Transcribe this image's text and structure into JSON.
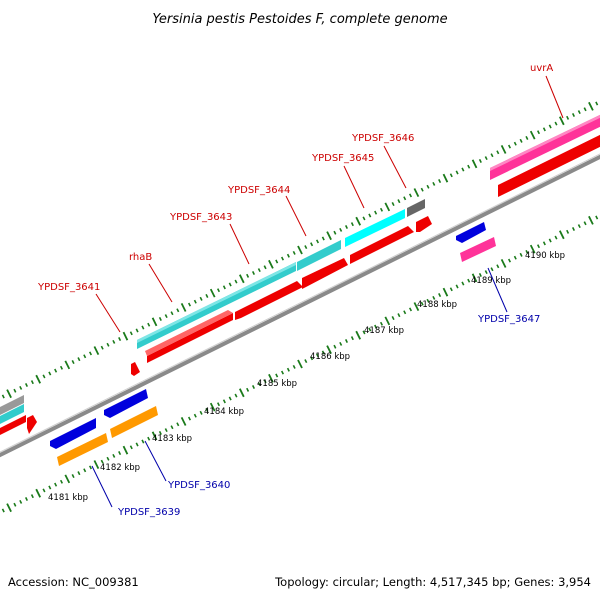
{
  "title": "Yersinia pestis Pestoides F, complete genome",
  "footer": {
    "accession": "Accession: NC_009381",
    "summary": "Topology: circular; Length: 4,517,345 bp; Genes: 3,954"
  },
  "colors": {
    "forward_label": "#cc0000",
    "reverse_label": "#0000aa",
    "backbone": "#8a8a8a",
    "tick": "#1a7a1a",
    "cds": "#ee0000",
    "gene_cyan": "#33cccc",
    "gene_bright_cyan": "#00ffff",
    "gene_magenta": "#ff3399",
    "gene_blue": "#0000dd",
    "gene_orange": "#ff9900",
    "gene_gray": "#777777"
  },
  "scale_ticks": [
    "4181 kbp",
    "4182 kbp",
    "4183 kbp",
    "4184 kbp",
    "4185 kbp",
    "4186 kbp",
    "4187 kbp",
    "4188 kbp",
    "4189 kbp",
    "4190 kbp"
  ],
  "forward_genes": [
    {
      "label": "YPDSF_3641"
    },
    {
      "label": "rhaB"
    },
    {
      "label": "YPDSF_3643"
    },
    {
      "label": "YPDSF_3644"
    },
    {
      "label": "YPDSF_3645"
    },
    {
      "label": "YPDSF_3646"
    },
    {
      "label": "uvrA"
    }
  ],
  "reverse_genes": [
    {
      "label": "YPDSF_3639"
    },
    {
      "label": "YPDSF_3640"
    },
    {
      "label": "YPDSF_3647"
    }
  ]
}
